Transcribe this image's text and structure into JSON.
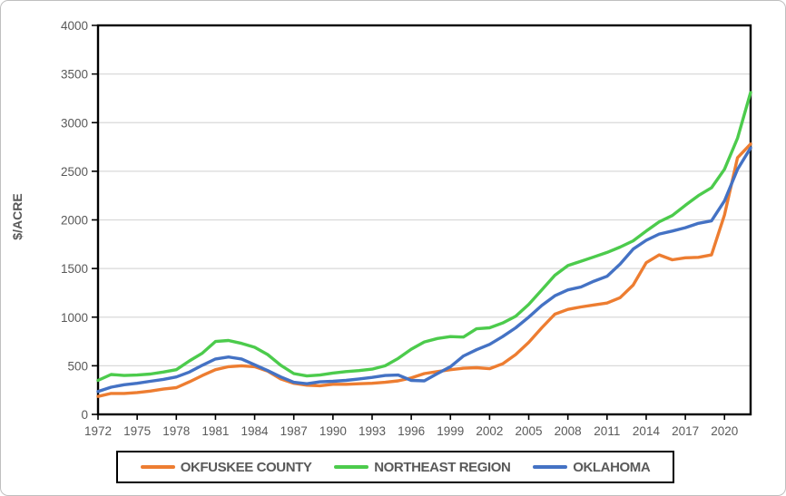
{
  "chart_data": {
    "type": "line",
    "title": "",
    "ylabel": "$/ACRE",
    "xlabel": "",
    "ylim": [
      0,
      4000
    ],
    "y_tick_interval": 500,
    "y_ticks": [
      0,
      500,
      1000,
      1500,
      2000,
      2500,
      3000,
      3500,
      4000
    ],
    "x_range": [
      1972,
      2022
    ],
    "x_tick_labels": [
      "1972",
      "1975",
      "1978",
      "1981",
      "1984",
      "1987",
      "1990",
      "1993",
      "1996",
      "1999",
      "2002",
      "2005",
      "2008",
      "2011",
      "2014",
      "2017",
      "2020"
    ],
    "grid": "horizontal",
    "legend_position": "bottom",
    "x": [
      1972,
      1973,
      1974,
      1975,
      1976,
      1977,
      1978,
      1979,
      1980,
      1981,
      1982,
      1983,
      1984,
      1985,
      1986,
      1987,
      1988,
      1989,
      1990,
      1991,
      1992,
      1993,
      1994,
      1995,
      1996,
      1997,
      1998,
      1999,
      2000,
      2001,
      2002,
      2003,
      2004,
      2005,
      2006,
      2007,
      2008,
      2009,
      2010,
      2011,
      2012,
      2013,
      2014,
      2015,
      2016,
      2017,
      2018,
      2019,
      2020,
      2021,
      2022
    ],
    "series": [
      {
        "name": "OKFUSKEE COUNTY",
        "color": "#ED7D31",
        "values": [
          185,
          215,
          215,
          225,
          240,
          260,
          275,
          335,
          400,
          460,
          490,
          500,
          490,
          445,
          365,
          320,
          300,
          295,
          310,
          310,
          315,
          320,
          330,
          345,
          375,
          420,
          440,
          460,
          475,
          480,
          470,
          520,
          615,
          740,
          890,
          1030,
          1080,
          1105,
          1125,
          1145,
          1200,
          1330,
          1560,
          1640,
          1590,
          1610,
          1615,
          1640,
          2050,
          2640,
          2780
        ]
      },
      {
        "name": "NORTHEAST REGION",
        "color": "#4CCB4C",
        "values": [
          350,
          410,
          400,
          405,
          415,
          435,
          460,
          550,
          630,
          750,
          760,
          730,
          690,
          615,
          505,
          420,
          395,
          405,
          425,
          440,
          450,
          465,
          500,
          575,
          670,
          745,
          780,
          800,
          795,
          880,
          890,
          940,
          1010,
          1130,
          1280,
          1430,
          1530,
          1575,
          1620,
          1665,
          1720,
          1785,
          1885,
          1980,
          2045,
          2150,
          2250,
          2330,
          2520,
          2840,
          3310
        ]
      },
      {
        "name": "OKLAHOMA",
        "color": "#4472C4",
        "values": [
          235,
          280,
          305,
          320,
          340,
          360,
          385,
          435,
          505,
          570,
          590,
          570,
          510,
          450,
          385,
          330,
          315,
          335,
          340,
          350,
          365,
          380,
          400,
          405,
          350,
          345,
          420,
          490,
          600,
          665,
          720,
          800,
          890,
          1000,
          1120,
          1220,
          1280,
          1310,
          1370,
          1420,
          1545,
          1700,
          1790,
          1855,
          1885,
          1920,
          1965,
          1990,
          2195,
          2520,
          2740
        ]
      }
    ]
  },
  "axis_style": {
    "text_color": "#595959",
    "grid_color": "#d9d9d9",
    "axis_color": "#000000"
  },
  "legend": {
    "items": [
      {
        "label": "OKFUSKEE COUNTY",
        "color": "#ED7D31"
      },
      {
        "label": "NORTHEAST REGION",
        "color": "#4CCB4C"
      },
      {
        "label": "OKLAHOMA",
        "color": "#4472C4"
      }
    ]
  }
}
